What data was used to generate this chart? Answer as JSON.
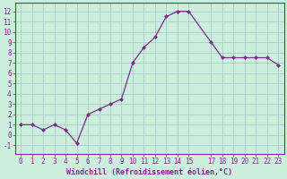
{
  "x": [
    0,
    1,
    2,
    3,
    4,
    5,
    6,
    7,
    8,
    9,
    10,
    11,
    12,
    13,
    14,
    15,
    17,
    18,
    19,
    20,
    21,
    22,
    23
  ],
  "y": [
    1,
    1,
    0.5,
    1,
    0.5,
    -0.8,
    2,
    2.5,
    3,
    3.5,
    7,
    8.5,
    9.5,
    11.5,
    12,
    12,
    9,
    7.5,
    7.5,
    7.5,
    7.5,
    7.5,
    6.8
  ],
  "line_color": "#7b2d8b",
  "marker_color": "#7b2d8b",
  "bg_color": "#cceedd",
  "grid_color": "#aacccc",
  "xlabel": "Windchill (Refroidissement éolien,°C)",
  "xlim": [
    -0.5,
    23.5
  ],
  "ylim": [
    -1.8,
    12.8
  ],
  "yticks": [
    -1,
    0,
    1,
    2,
    3,
    4,
    5,
    6,
    7,
    8,
    9,
    10,
    11,
    12
  ],
  "xticks": [
    0,
    1,
    2,
    3,
    4,
    5,
    6,
    7,
    8,
    9,
    10,
    11,
    12,
    13,
    14,
    15,
    17,
    18,
    19,
    20,
    21,
    22,
    23
  ],
  "tick_fontsize": 5.5,
  "xlabel_fontsize": 6.0,
  "label_color": "#7b2d8b",
  "spine_color": "#7b2d8b"
}
